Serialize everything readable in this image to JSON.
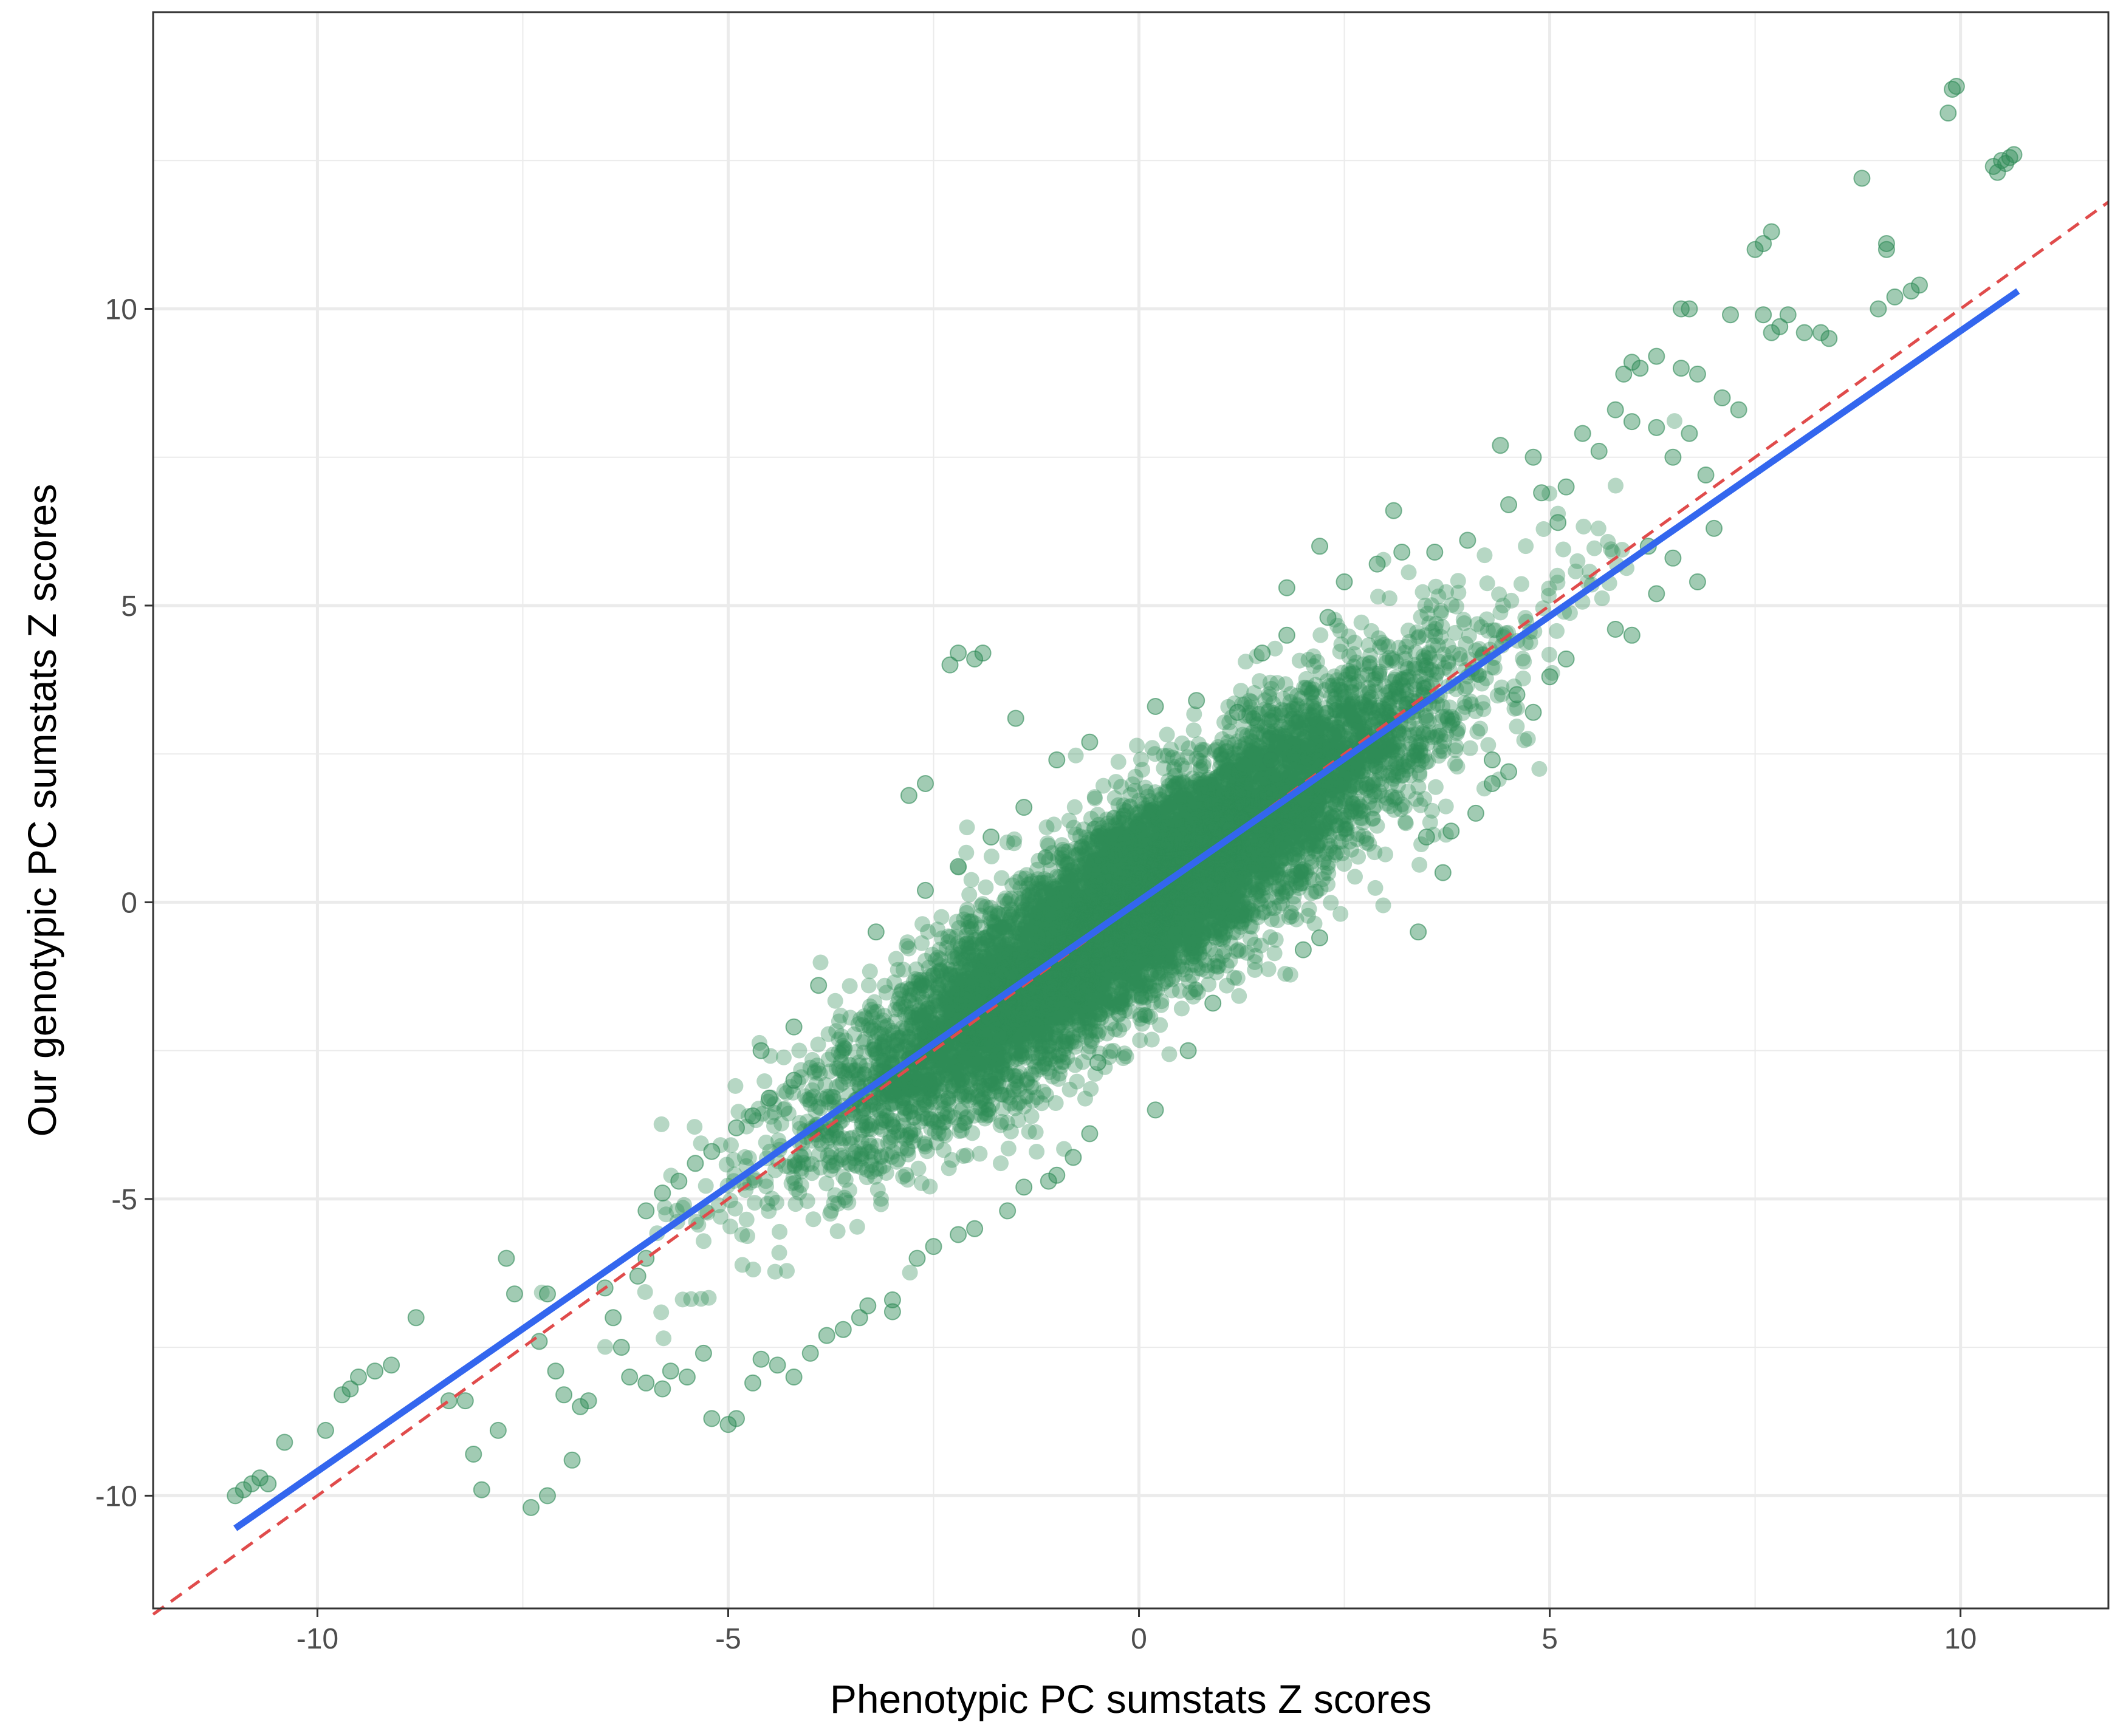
{
  "chart_data": {
    "type": "scatter",
    "title": "",
    "xlabel": "Phenotypic PC sumstats Z scores",
    "ylabel": "Our genotypic PC sumstats Z scores",
    "xlim": [
      -12,
      11.8
    ],
    "ylim": [
      -11.9,
      15
    ],
    "x_ticks": [
      -10,
      -5,
      0,
      5,
      10
    ],
    "x_tick_labels": [
      "-10",
      "-5",
      "0",
      "5",
      "10"
    ],
    "y_ticks": [
      -10,
      -5,
      0,
      5,
      10
    ],
    "y_tick_labels": [
      "-10",
      "-5",
      "0",
      "5",
      "10"
    ],
    "grid": true,
    "legend": "none",
    "colors": {
      "points": "#2e8b57",
      "regression_line": "#3366ee",
      "identity_line": "#e04b4b",
      "grid": "#ebebeb",
      "panel_border": "#333333"
    },
    "point_alpha": 0.45,
    "cloud": {
      "description_free_params_only": true,
      "center_x": 0,
      "center_y": 0,
      "slope": 0.96,
      "sd_x": 1.8,
      "residual_sd": 0.85
    },
    "series": [
      {
        "type": "scatter",
        "points": [
          [
            9.9,
            13.7
          ],
          [
            9.95,
            13.75
          ],
          [
            9.85,
            13.3
          ],
          [
            10.4,
            12.4
          ],
          [
            10.5,
            12.5
          ],
          [
            10.6,
            12.55
          ],
          [
            10.45,
            12.3
          ],
          [
            10.55,
            12.45
          ],
          [
            10.65,
            12.6
          ],
          [
            8.8,
            12.2
          ],
          [
            7.7,
            11.3
          ],
          [
            7.5,
            11.0
          ],
          [
            7.6,
            11.1
          ],
          [
            9.1,
            11.1
          ],
          [
            9.1,
            11.0
          ],
          [
            9.4,
            10.3
          ],
          [
            9.5,
            10.4
          ],
          [
            9.2,
            10.2
          ],
          [
            9.0,
            10.0
          ],
          [
            6.6,
            10.0
          ],
          [
            6.7,
            10.0
          ],
          [
            7.2,
            9.9
          ],
          [
            7.6,
            9.9
          ],
          [
            7.9,
            9.9
          ],
          [
            7.7,
            9.6
          ],
          [
            7.8,
            9.7
          ],
          [
            8.1,
            9.6
          ],
          [
            8.4,
            9.5
          ],
          [
            8.3,
            9.6
          ],
          [
            6.3,
            9.2
          ],
          [
            6.1,
            9.0
          ],
          [
            5.9,
            8.9
          ],
          [
            6.0,
            9.1
          ],
          [
            6.6,
            9.0
          ],
          [
            6.8,
            8.9
          ],
          [
            7.1,
            8.5
          ],
          [
            7.3,
            8.3
          ],
          [
            5.8,
            8.3
          ],
          [
            6.0,
            8.1
          ],
          [
            6.3,
            8.0
          ],
          [
            6.5,
            7.5
          ],
          [
            6.7,
            7.9
          ],
          [
            6.9,
            7.2
          ],
          [
            5.4,
            7.9
          ],
          [
            5.6,
            7.6
          ],
          [
            5.2,
            7.0
          ],
          [
            4.8,
            7.5
          ],
          [
            4.4,
            7.7
          ],
          [
            3.1,
            6.6
          ],
          [
            2.2,
            6.0
          ],
          [
            1.8,
            5.3
          ],
          [
            6.2,
            6.0
          ],
          [
            6.5,
            5.8
          ],
          [
            7.0,
            6.3
          ],
          [
            6.8,
            5.4
          ],
          [
            6.3,
            5.2
          ],
          [
            5.8,
            4.6
          ],
          [
            6.0,
            4.5
          ],
          [
            5.2,
            4.1
          ],
          [
            5.0,
            3.8
          ],
          [
            4.6,
            3.5
          ],
          [
            4.8,
            3.2
          ],
          [
            4.3,
            2.4
          ],
          [
            4.5,
            2.2
          ],
          [
            -2.2,
            4.2
          ],
          [
            -2.3,
            4.0
          ],
          [
            -1.9,
            4.2
          ],
          [
            -2.0,
            4.1
          ],
          [
            -1.5,
            3.1
          ],
          [
            -2.6,
            2.0
          ],
          [
            -2.8,
            1.8
          ],
          [
            -10.9,
            -9.9
          ],
          [
            -10.8,
            -9.8
          ],
          [
            -11.0,
            -10.0
          ],
          [
            -10.6,
            -9.8
          ],
          [
            -10.7,
            -9.7
          ],
          [
            -10.4,
            -9.1
          ],
          [
            -9.9,
            -8.9
          ],
          [
            -9.6,
            -8.2
          ],
          [
            -9.5,
            -8.0
          ],
          [
            -9.7,
            -8.3
          ],
          [
            -9.3,
            -7.9
          ],
          [
            -9.1,
            -7.8
          ],
          [
            -8.8,
            -7.0
          ],
          [
            -8.4,
            -8.4
          ],
          [
            -8.2,
            -8.4
          ],
          [
            -8.1,
            -9.3
          ],
          [
            -8.0,
            -9.9
          ],
          [
            -7.8,
            -8.9
          ],
          [
            -7.6,
            -6.6
          ],
          [
            -7.7,
            -6.0
          ],
          [
            -7.2,
            -6.6
          ],
          [
            -7.3,
            -7.4
          ],
          [
            -7.1,
            -7.9
          ],
          [
            -7.0,
            -8.3
          ],
          [
            -7.4,
            -10.2
          ],
          [
            -7.2,
            -10.0
          ],
          [
            -6.9,
            -9.4
          ],
          [
            -6.8,
            -8.5
          ],
          [
            -6.7,
            -8.4
          ],
          [
            -6.5,
            -6.5
          ],
          [
            -6.4,
            -7.0
          ],
          [
            -6.3,
            -7.5
          ],
          [
            -6.1,
            -6.3
          ],
          [
            -6.0,
            -6.0
          ],
          [
            -6.2,
            -8.0
          ],
          [
            -6.0,
            -8.1
          ],
          [
            -5.8,
            -8.2
          ],
          [
            -5.7,
            -7.9
          ],
          [
            -5.5,
            -8.0
          ],
          [
            -5.3,
            -7.6
          ],
          [
            -5.2,
            -8.7
          ],
          [
            -5.0,
            -8.8
          ],
          [
            -4.9,
            -8.7
          ],
          [
            -4.7,
            -8.1
          ],
          [
            -4.6,
            -7.7
          ],
          [
            -4.4,
            -7.8
          ],
          [
            -4.2,
            -8.0
          ],
          [
            -4.0,
            -7.6
          ],
          [
            -3.8,
            -7.3
          ],
          [
            -3.6,
            -7.2
          ],
          [
            -3.4,
            -7.0
          ],
          [
            -3.3,
            -6.8
          ],
          [
            -3.0,
            -6.7
          ],
          [
            -6.0,
            -5.2
          ],
          [
            -5.8,
            -4.9
          ],
          [
            -5.6,
            -4.7
          ],
          [
            -5.4,
            -4.4
          ],
          [
            -5.2,
            -4.2
          ],
          [
            -4.9,
            -3.8
          ],
          [
            -4.7,
            -3.6
          ],
          [
            -4.5,
            -3.3
          ],
          [
            -4.2,
            -3.0
          ],
          [
            -3.0,
            -6.9
          ],
          [
            -2.7,
            -6.0
          ],
          [
            -2.5,
            -5.8
          ],
          [
            -2.2,
            -5.6
          ],
          [
            -2.0,
            -5.5
          ],
          [
            -1.6,
            -5.2
          ],
          [
            -1.4,
            -4.8
          ],
          [
            -1.1,
            -4.7
          ],
          [
            -1.0,
            -4.6
          ],
          [
            -0.8,
            -4.3
          ],
          [
            -0.6,
            -3.9
          ],
          [
            0.2,
            -3.5
          ],
          [
            -0.5,
            -2.7
          ],
          [
            0.6,
            -2.5
          ],
          [
            0.9,
            -1.7
          ],
          [
            2.0,
            -0.8
          ],
          [
            2.2,
            -0.6
          ],
          [
            3.4,
            -0.5
          ],
          [
            3.7,
            0.5
          ],
          [
            3.5,
            1.1
          ],
          [
            3.8,
            1.2
          ],
          [
            4.1,
            1.5
          ],
          [
            4.3,
            2.0
          ],
          [
            1.6,
            2.4
          ],
          [
            1.2,
            3.2
          ],
          [
            0.7,
            3.4
          ],
          [
            0.2,
            3.3
          ],
          [
            -0.6,
            2.7
          ],
          [
            -1.0,
            2.4
          ],
          [
            -1.4,
            1.6
          ],
          [
            -1.8,
            1.1
          ],
          [
            -2.2,
            0.6
          ],
          [
            -2.6,
            0.2
          ],
          [
            -3.2,
            -0.5
          ],
          [
            -3.9,
            -1.4
          ],
          [
            -4.2,
            -2.1
          ],
          [
            -4.6,
            -2.5
          ],
          [
            1.5,
            4.2
          ],
          [
            1.8,
            4.5
          ],
          [
            2.3,
            4.8
          ],
          [
            2.5,
            5.4
          ],
          [
            2.9,
            5.7
          ],
          [
            3.2,
            5.9
          ],
          [
            3.6,
            5.9
          ],
          [
            4.0,
            6.1
          ],
          [
            4.5,
            6.7
          ],
          [
            4.9,
            6.9
          ],
          [
            5.1,
            6.4
          ]
        ]
      }
    ],
    "lines": [
      {
        "name": "",
        "kind": "regression",
        "x": [
          -11.0,
          10.7
        ],
        "y": [
          -10.55,
          10.3
        ]
      },
      {
        "name": "",
        "kind": "identity",
        "x": [
          -12,
          11.8
        ],
        "y": [
          -12,
          11.8
        ]
      }
    ]
  }
}
